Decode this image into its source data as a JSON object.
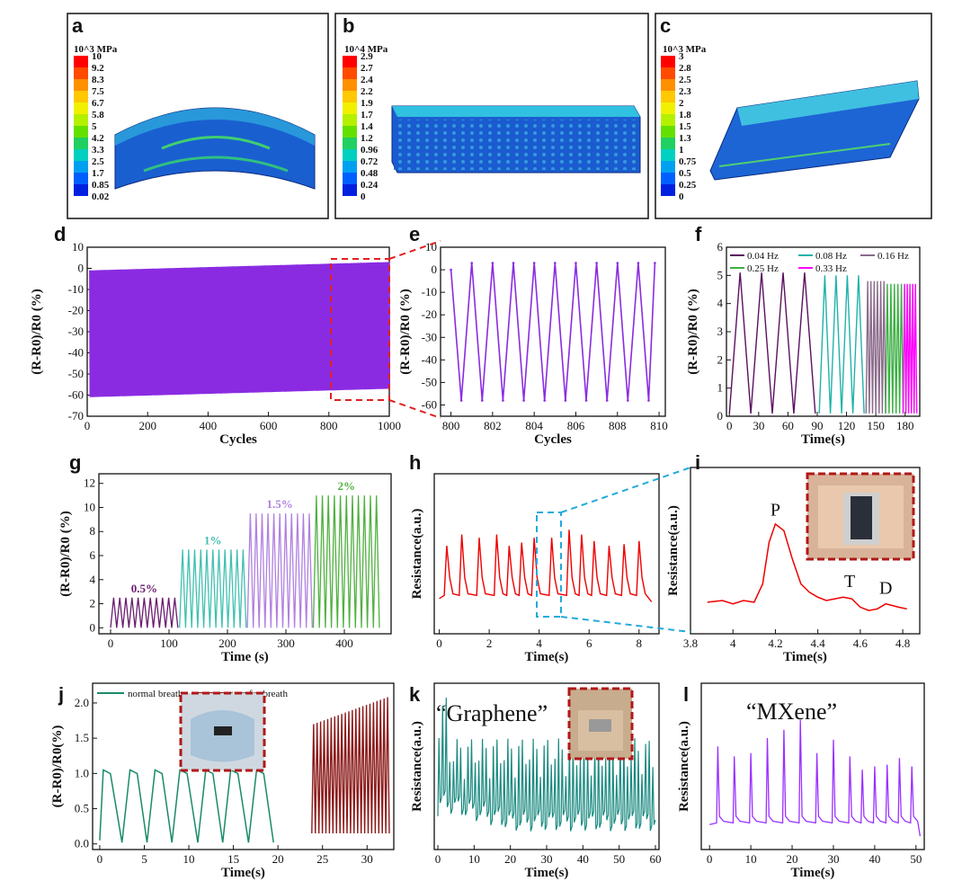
{
  "panels": {
    "a": {
      "label": "a",
      "unit": "10^3 MPa",
      "ticks": [
        "10",
        "9.2",
        "8.3",
        "7.5",
        "6.7",
        "5.8",
        "5",
        "4.2",
        "3.3",
        "2.5",
        "1.7",
        "0.85",
        "0.02"
      ]
    },
    "b": {
      "label": "b",
      "unit": "10^4 MPa",
      "ticks": [
        "2.9",
        "2.7",
        "2.4",
        "2.2",
        "1.9",
        "1.7",
        "1.4",
        "1.2",
        "0.96",
        "0.72",
        "0.48",
        "0.24",
        "0"
      ]
    },
    "c": {
      "label": "c",
      "unit": "10^3 MPa",
      "ticks": [
        "3",
        "2.8",
        "2.5",
        "2.3",
        "2",
        "1.8",
        "1.5",
        "1.3",
        "1",
        "0.75",
        "0.5",
        "0.25",
        "0"
      ]
    }
  },
  "colorbar": [
    "#ff0000",
    "#ff4a00",
    "#ff9000",
    "#ffc800",
    "#f0f000",
    "#b4f000",
    "#64e000",
    "#20d060",
    "#00d0c0",
    "#00a0f0",
    "#0060ff",
    "#0020e0"
  ],
  "chart_data": [
    {
      "panel": "d",
      "type": "line",
      "xlabel": "Cycles",
      "ylabel": "(R-R0)/R0 (%)",
      "xlim": [
        0,
        1000
      ],
      "ylim": [
        -70,
        10
      ],
      "xticks": [
        0,
        200,
        400,
        600,
        800,
        1000
      ],
      "yticks": [
        -70,
        -60,
        -50,
        -40,
        -30,
        -20,
        -10,
        0,
        10
      ],
      "envelope": {
        "upper_start": -1,
        "upper_end": 3,
        "lower_start": -61,
        "lower_end": -57
      },
      "color": "#8a2be2"
    },
    {
      "panel": "e",
      "type": "line",
      "xlabel": "Cycles",
      "ylabel": "(R-R0)/R0 (%)",
      "xlim": [
        799.5,
        810.3
      ],
      "ylim": [
        -65,
        10
      ],
      "xticks": [
        800,
        802,
        804,
        806,
        808,
        810
      ],
      "yticks": [
        -60,
        -50,
        -40,
        -30,
        -20,
        -10,
        0,
        10
      ],
      "x": [
        800,
        800.5,
        801,
        801.5,
        802,
        802.5,
        803,
        803.5,
        804,
        804.5,
        805,
        805.5,
        806,
        806.5,
        807,
        807.5,
        808,
        808.5,
        809,
        809.5,
        809.8
      ],
      "y": [
        0,
        -58,
        3,
        -58,
        3,
        -58,
        3,
        -58,
        3,
        -58,
        3,
        -58,
        3,
        -58,
        3,
        -58,
        3,
        -58,
        3,
        -58,
        3
      ],
      "color": "#8a2be2"
    },
    {
      "panel": "f",
      "type": "line",
      "xlabel": "Time(s)",
      "ylabel": "(R-R0)/R0 (%)",
      "xlim": [
        -3,
        195
      ],
      "ylim": [
        0,
        6
      ],
      "xticks": [
        0,
        30,
        60,
        90,
        120,
        150,
        180
      ],
      "yticks": [
        0,
        1,
        2,
        3,
        4,
        5,
        6
      ],
      "series": [
        {
          "name": "0.04 Hz",
          "color": "#5b1060",
          "start": 0,
          "end": 88,
          "peaks": 4,
          "amp": 5.1
        },
        {
          "name": "0.08 Hz",
          "color": "#20b2aa",
          "start": 92,
          "end": 138,
          "peaks": 4,
          "amp": 5.0
        },
        {
          "name": "0.16 Hz",
          "color": "#8b6b8b",
          "start": 140,
          "end": 160,
          "peaks": 6,
          "amp": 4.8
        },
        {
          "name": "0.25 Hz",
          "color": "#3cb043",
          "start": 160,
          "end": 178,
          "peaks": 5,
          "amp": 4.7
        },
        {
          "name": "0.33 Hz",
          "color": "#ff00ff",
          "start": 178,
          "end": 192,
          "peaks": 5,
          "amp": 4.7
        }
      ]
    },
    {
      "panel": "g",
      "type": "line",
      "xlabel": "Time (s)",
      "ylabel": "(R-R0)/R0 (%)",
      "xlim": [
        -20,
        480
      ],
      "ylim": [
        -0.5,
        12.8
      ],
      "xticks": [
        0,
        100,
        200,
        300,
        400
      ],
      "yticks": [
        0,
        2,
        4,
        6,
        8,
        10,
        12
      ],
      "series": [
        {
          "name": "0.5%",
          "color": "#6a1b6f",
          "start": 0,
          "end": 115,
          "peak": 2.5,
          "n": 11
        },
        {
          "name": "1%",
          "color": "#40c0b0",
          "start": 118,
          "end": 232,
          "peak": 6.5,
          "n": 11
        },
        {
          "name": "1.5%",
          "color": "#b080e0",
          "start": 234,
          "end": 345,
          "peak": 9.5,
          "n": 11
        },
        {
          "name": "2%",
          "color": "#50b040",
          "start": 347,
          "end": 460,
          "peak": 11,
          "n": 11
        }
      ]
    },
    {
      "panel": "h",
      "type": "line",
      "xlabel": "Time(s)",
      "ylabel": "Resistance(a.u.)",
      "xlim": [
        -0.2,
        8.8
      ],
      "ylim": [
        0,
        1
      ],
      "xticks": [
        0,
        2,
        4,
        6,
        8
      ],
      "beats": [
        0.2,
        0.8,
        1.5,
        2.2,
        2.7,
        3.2,
        3.7,
        4.4,
        5.1,
        5.6,
        6.1,
        6.7,
        7.3,
        7.9
      ],
      "peaks": [
        0.55,
        0.62,
        0.6,
        0.62,
        0.55,
        0.57,
        0.6,
        0.6,
        0.65,
        0.62,
        0.58,
        0.55,
        0.56,
        0.58
      ],
      "color": "#ee0000"
    },
    {
      "panel": "i",
      "type": "line",
      "xlabel": "Time(s)",
      "ylabel": "Resistance(a.u.)",
      "xlim": [
        3.8,
        4.88
      ],
      "ylim": [
        0,
        1
      ],
      "xticks": [
        3.8,
        4.0,
        4.2,
        4.4,
        4.6,
        4.8
      ],
      "annotations": [
        "P",
        "T",
        "D"
      ],
      "x": [
        3.88,
        3.95,
        4.0,
        4.05,
        4.1,
        4.14,
        4.17,
        4.2,
        4.24,
        4.28,
        4.32,
        4.36,
        4.4,
        4.44,
        4.48,
        4.52,
        4.56,
        4.6,
        4.64,
        4.68,
        4.72,
        4.75,
        4.78,
        4.82
      ],
      "y": [
        0.19,
        0.2,
        0.18,
        0.2,
        0.19,
        0.3,
        0.55,
        0.66,
        0.62,
        0.45,
        0.3,
        0.25,
        0.22,
        0.2,
        0.21,
        0.22,
        0.21,
        0.16,
        0.14,
        0.15,
        0.18,
        0.17,
        0.16,
        0.15
      ],
      "color": "#ee0000"
    },
    {
      "panel": "j",
      "type": "line",
      "xlabel": "Time(s)",
      "ylabel": "(R-R0)/R0(%)",
      "xlim": [
        -0.8,
        33
      ],
      "ylim": [
        -0.08,
        2.28
      ],
      "xticks": [
        0,
        5,
        10,
        15,
        20,
        25,
        30
      ],
      "yticks": [
        0,
        0.5,
        1.0,
        1.5,
        2.0
      ],
      "series": [
        {
          "name": "normal breath",
          "color": "#1a8a6a",
          "breaths": [
            0,
            3,
            5.8,
            8.6,
            11.5,
            14.3,
            17.2,
            20.0
          ],
          "peak": 1.05,
          "end": 23
        },
        {
          "name": "gasp for breath",
          "color": "#8b1a1a",
          "start": 23.8,
          "end": 32.5,
          "peaks": 22,
          "amp_start": 1.7,
          "amp_end": 2.1
        }
      ]
    },
    {
      "panel": "k",
      "type": "line",
      "xlabel": "Time(s)",
      "ylabel": "Resistance(a.u.)",
      "xlim": [
        -1,
        61
      ],
      "ylim": [
        0,
        1
      ],
      "xticks": [
        0,
        10,
        20,
        30,
        40,
        50,
        60
      ],
      "title": "“Graphene”",
      "color": "#1a8a80"
    },
    {
      "panel": "l",
      "type": "line",
      "xlabel": "Time(s)",
      "ylabel": "Resistance(a.u.)",
      "xlim": [
        -2,
        52
      ],
      "ylim": [
        0,
        1
      ],
      "xticks": [
        0,
        10,
        20,
        30,
        40,
        50
      ],
      "title": "“MXene”",
      "color": "#9a30ff",
      "spikes": [
        2,
        6,
        10,
        14,
        18,
        22,
        26,
        30,
        34,
        37,
        40,
        43,
        46,
        49
      ],
      "heights": [
        0.62,
        0.56,
        0.58,
        0.67,
        0.72,
        0.78,
        0.58,
        0.66,
        0.56,
        0.48,
        0.5,
        0.51,
        0.55,
        0.5
      ]
    }
  ]
}
